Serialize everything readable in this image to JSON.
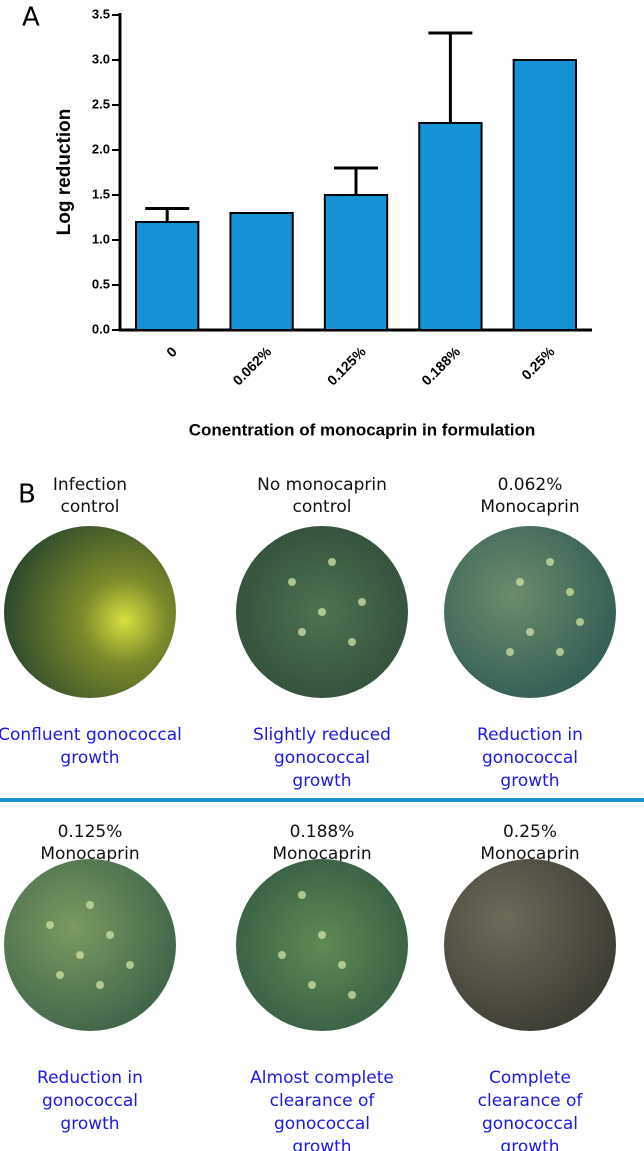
{
  "chart_data": {
    "type": "bar",
    "panel_label": "A",
    "categories": [
      "0",
      "0.062%",
      "0.125%",
      "0.188%",
      "0.25%"
    ],
    "values": [
      1.2,
      1.3,
      1.5,
      2.3,
      3.0
    ],
    "errors": [
      0.15,
      null,
      0.3,
      1.0,
      null
    ],
    "color": "#1591d6",
    "ylabel": "Log reduction",
    "xlabel": "Conentration of monocaprin in formulation",
    "ylim": [
      0,
      3.5
    ],
    "yticks": [
      {
        "value": 0,
        "label": "0.0"
      },
      {
        "value": 0.5,
        "label": "0.5"
      },
      {
        "value": 1,
        "label": "1.0"
      },
      {
        "value": 1.5,
        "label": "1.5"
      },
      {
        "value": 2,
        "label": "2.0"
      },
      {
        "value": 2.5,
        "label": "2.5"
      },
      {
        "value": 3,
        "label": "3.0"
      },
      {
        "value": 3.5,
        "label": "3.5"
      }
    ]
  },
  "panel_b": {
    "panel_label": "B",
    "plates": [
      {
        "title": [
          "Infection",
          "control"
        ],
        "caption": [
          "Confluent gonococcal",
          "growth"
        ]
      },
      {
        "title": [
          "No monocaprin",
          "control"
        ],
        "caption": [
          "Slightly reduced",
          "gonococcal",
          "growth"
        ]
      },
      {
        "title": [
          "0.062%",
          "Monocaprin"
        ],
        "caption": [
          "Reduction in",
          "gonococcal",
          "growth"
        ]
      },
      {
        "title": [
          "0.125%",
          "Monocaprin"
        ],
        "caption": [
          "Reduction in",
          "gonococcal",
          "growth"
        ]
      },
      {
        "title": [
          "0.188%",
          "Monocaprin"
        ],
        "caption": [
          "Almost complete",
          "clearance of",
          "gonococcal",
          "growth"
        ]
      },
      {
        "title": [
          "0.25%",
          "Monocaprin"
        ],
        "caption": [
          "Complete",
          "clearance of",
          "gonococcal",
          "growth"
        ]
      }
    ]
  }
}
